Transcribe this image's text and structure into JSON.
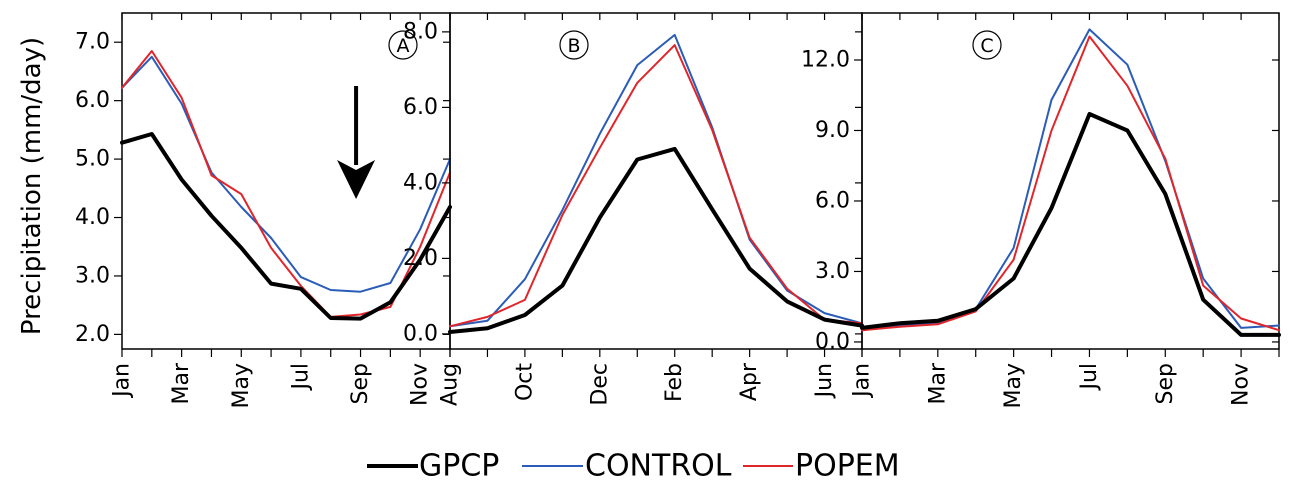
{
  "ylabel": "Precipitation (mm/day)",
  "legend": [
    {
      "name": "GPCP",
      "color": "#000000"
    },
    {
      "name": "CONTROL",
      "color": "#2a5cb8"
    },
    {
      "name": "POPEM",
      "color": "#e0262a"
    }
  ],
  "chart_data": [
    {
      "type": "line",
      "panel_label": "A",
      "annotation": "down-arrow-icon",
      "x": [
        "Jan",
        "Feb",
        "Mar",
        "Apr",
        "May",
        "Jun",
        "Jul",
        "Aug",
        "Sep",
        "Oct",
        "Nov",
        "Dec"
      ],
      "xtick_labels": [
        "Jan",
        "Mar",
        "May",
        "Jul",
        "Sep",
        "Nov"
      ],
      "ylim": [
        1.75,
        7.5
      ],
      "yticks": [
        2.0,
        3.0,
        4.0,
        5.0,
        6.0,
        7.0
      ],
      "ytick_labels": [
        "2.0",
        "3.0",
        "4.0",
        "5.0",
        "6.0",
        "7.0"
      ],
      "series": [
        {
          "name": "GPCP",
          "values": [
            5.28,
            5.43,
            4.65,
            4.03,
            3.48,
            2.87,
            2.78,
            2.28,
            2.27,
            2.55,
            3.28,
            4.18
          ]
        },
        {
          "name": "CONTROL",
          "values": [
            6.22,
            6.75,
            5.95,
            4.77,
            4.18,
            3.65,
            2.98,
            2.76,
            2.73,
            2.88,
            3.8,
            5.0
          ]
        },
        {
          "name": "POPEM",
          "values": [
            6.22,
            6.85,
            6.05,
            4.72,
            4.4,
            3.48,
            2.83,
            2.3,
            2.34,
            2.47,
            3.5,
            4.77
          ]
        }
      ]
    },
    {
      "type": "line",
      "panel_label": "B",
      "x": [
        "Aug",
        "Sep",
        "Oct",
        "Nov",
        "Dec",
        "Jan",
        "Feb",
        "Mar",
        "Apr",
        "May",
        "Jun",
        "Jul"
      ],
      "xtick_labels": [
        "Aug",
        "Oct",
        "Dec",
        "Feb",
        "Apr",
        "Jun"
      ],
      "ylim": [
        -0.4,
        8.5
      ],
      "yticks": [
        0.0,
        2.0,
        4.0,
        6.0,
        8.0
      ],
      "ytick_labels": [
        "0.0",
        "2.0",
        "4.0",
        "6.0",
        "8.0"
      ],
      "series": [
        {
          "name": "GPCP",
          "values": [
            0.05,
            0.15,
            0.5,
            1.28,
            3.08,
            4.62,
            4.9,
            3.3,
            1.73,
            0.86,
            0.38,
            0.22
          ]
        },
        {
          "name": "CONTROL",
          "values": [
            0.2,
            0.35,
            1.45,
            3.28,
            5.3,
            7.12,
            7.92,
            5.47,
            2.5,
            1.15,
            0.55,
            0.28
          ]
        },
        {
          "name": "POPEM",
          "values": [
            0.2,
            0.45,
            0.9,
            3.15,
            4.93,
            6.65,
            7.65,
            5.4,
            2.55,
            1.2,
            0.38,
            0.28
          ]
        }
      ]
    },
    {
      "type": "line",
      "panel_label": "C",
      "x": [
        "Jan",
        "Feb",
        "Mar",
        "Apr",
        "May",
        "Jun",
        "Jul",
        "Aug",
        "Sep",
        "Oct",
        "Nov",
        "Dec"
      ],
      "xtick_labels": [
        "Jan",
        "Mar",
        "May",
        "Jul",
        "Sep",
        "Nov"
      ],
      "ylim": [
        -0.3,
        14.0
      ],
      "yticks": [
        0.0,
        3.0,
        6.0,
        9.0,
        12.0
      ],
      "ytick_labels": [
        "0.0",
        "3.0",
        "6.0",
        "9.0",
        "12.0"
      ],
      "series": [
        {
          "name": "GPCP",
          "values": [
            0.6,
            0.8,
            0.9,
            1.4,
            2.7,
            5.7,
            9.7,
            9.0,
            6.3,
            1.8,
            0.3,
            0.3
          ]
        },
        {
          "name": "CONTROL",
          "values": [
            0.5,
            0.7,
            0.8,
            1.4,
            4.0,
            10.3,
            13.3,
            11.8,
            7.7,
            2.7,
            0.6,
            0.7
          ]
        },
        {
          "name": "POPEM",
          "values": [
            0.5,
            0.65,
            0.75,
            1.3,
            3.5,
            9.0,
            13.0,
            10.9,
            7.8,
            2.4,
            1.0,
            0.5
          ]
        }
      ]
    }
  ]
}
